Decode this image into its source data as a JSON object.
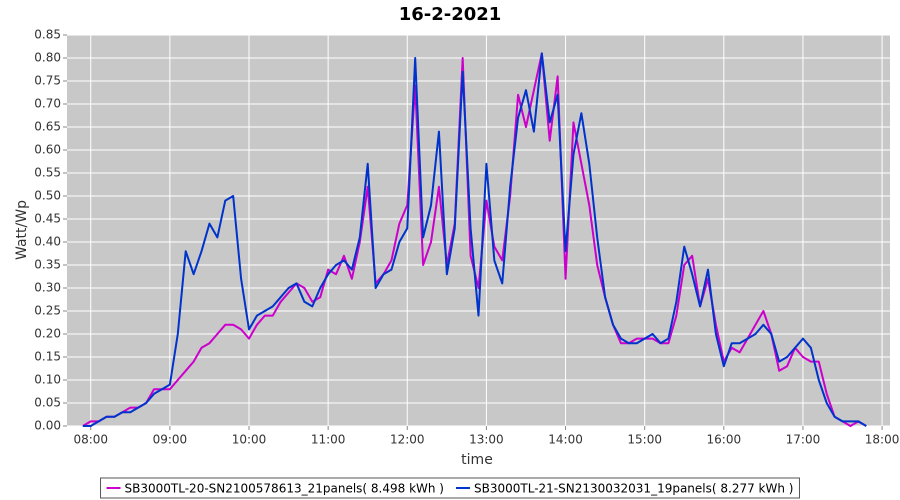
{
  "chart_data": {
    "type": "line",
    "title": "16-2-2021",
    "x_label": "time",
    "y_label": "Watt/Wp",
    "x": [
      7.9,
      8.0,
      8.1,
      8.2,
      8.3,
      8.4,
      8.5,
      8.6,
      8.7,
      8.8,
      8.9,
      9.0,
      9.1,
      9.2,
      9.3,
      9.4,
      9.5,
      9.6,
      9.7,
      9.8,
      9.9,
      10.0,
      10.1,
      10.2,
      10.3,
      10.4,
      10.5,
      10.6,
      10.7,
      10.8,
      10.9,
      11.0,
      11.1,
      11.2,
      11.3,
      11.4,
      11.5,
      11.6,
      11.7,
      11.8,
      11.9,
      12.0,
      12.1,
      12.2,
      12.3,
      12.4,
      12.5,
      12.6,
      12.7,
      12.8,
      12.9,
      13.0,
      13.1,
      13.2,
      13.3,
      13.4,
      13.5,
      13.6,
      13.7,
      13.8,
      13.9,
      14.0,
      14.1,
      14.2,
      14.3,
      14.4,
      14.5,
      14.6,
      14.7,
      14.8,
      14.9,
      15.0,
      15.1,
      15.2,
      15.3,
      15.4,
      15.5,
      15.6,
      15.7,
      15.8,
      15.9,
      16.0,
      16.1,
      16.2,
      16.3,
      16.4,
      16.5,
      16.6,
      16.7,
      16.8,
      16.9,
      17.0,
      17.1,
      17.2,
      17.3,
      17.4,
      17.5,
      17.6,
      17.7,
      17.8
    ],
    "series": [
      {
        "name": "SB3000TL-20-SN2100578613_21panels( 8.498 kWh )",
        "color": "#cc00cc",
        "values": [
          0.0,
          0.01,
          0.01,
          0.02,
          0.02,
          0.03,
          0.04,
          0.04,
          0.05,
          0.08,
          0.08,
          0.08,
          0.1,
          0.12,
          0.14,
          0.17,
          0.18,
          0.2,
          0.22,
          0.22,
          0.21,
          0.19,
          0.22,
          0.24,
          0.24,
          0.27,
          0.29,
          0.31,
          0.3,
          0.27,
          0.28,
          0.34,
          0.33,
          0.37,
          0.32,
          0.4,
          0.52,
          0.31,
          0.33,
          0.36,
          0.44,
          0.48,
          0.74,
          0.35,
          0.4,
          0.52,
          0.35,
          0.44,
          0.8,
          0.37,
          0.3,
          0.49,
          0.39,
          0.36,
          0.5,
          0.72,
          0.65,
          0.73,
          0.81,
          0.62,
          0.76,
          0.32,
          0.66,
          0.57,
          0.48,
          0.35,
          0.28,
          0.22,
          0.18,
          0.18,
          0.19,
          0.19,
          0.19,
          0.18,
          0.18,
          0.24,
          0.35,
          0.37,
          0.26,
          0.32,
          0.22,
          0.14,
          0.17,
          0.16,
          0.19,
          0.22,
          0.25,
          0.2,
          0.12,
          0.13,
          0.17,
          0.15,
          0.14,
          0.14,
          0.07,
          0.02,
          0.01,
          0.0,
          0.01,
          0.0
        ]
      },
      {
        "name": "SB3000TL-21-SN2130032031_19panels( 8.277 kWh )",
        "color": "#0033cc",
        "values": [
          0.0,
          0.0,
          0.01,
          0.02,
          0.02,
          0.03,
          0.03,
          0.04,
          0.05,
          0.07,
          0.08,
          0.09,
          0.2,
          0.38,
          0.33,
          0.38,
          0.44,
          0.41,
          0.49,
          0.5,
          0.32,
          0.21,
          0.24,
          0.25,
          0.26,
          0.28,
          0.3,
          0.31,
          0.27,
          0.26,
          0.3,
          0.33,
          0.35,
          0.36,
          0.34,
          0.41,
          0.57,
          0.3,
          0.33,
          0.34,
          0.4,
          0.43,
          0.8,
          0.41,
          0.48,
          0.64,
          0.33,
          0.43,
          0.77,
          0.43,
          0.24,
          0.57,
          0.36,
          0.31,
          0.52,
          0.67,
          0.73,
          0.64,
          0.81,
          0.66,
          0.72,
          0.38,
          0.59,
          0.68,
          0.57,
          0.41,
          0.28,
          0.22,
          0.19,
          0.18,
          0.18,
          0.19,
          0.2,
          0.18,
          0.19,
          0.27,
          0.39,
          0.33,
          0.26,
          0.34,
          0.2,
          0.13,
          0.18,
          0.18,
          0.19,
          0.2,
          0.22,
          0.2,
          0.14,
          0.15,
          0.17,
          0.19,
          0.17,
          0.1,
          0.05,
          0.02,
          0.01,
          0.01,
          0.01,
          0.0
        ]
      }
    ],
    "xlim": [
      7.7,
      18.1
    ],
    "xticks": [
      {
        "value": 8,
        "label": "08:00"
      },
      {
        "value": 9,
        "label": "09:00"
      },
      {
        "value": 10,
        "label": "10:00"
      },
      {
        "value": 11,
        "label": "11:00"
      },
      {
        "value": 12,
        "label": "12:00"
      },
      {
        "value": 13,
        "label": "13:00"
      },
      {
        "value": 14,
        "label": "14:00"
      },
      {
        "value": 15,
        "label": "15:00"
      },
      {
        "value": 16,
        "label": "16:00"
      },
      {
        "value": 17,
        "label": "17:00"
      },
      {
        "value": 18,
        "label": "18:00"
      }
    ],
    "ylim": [
      0,
      0.85
    ],
    "yticks": [
      {
        "value": 0,
        "label": "0.00"
      },
      0.05,
      {
        "value": 0.1,
        "label": "0.10"
      },
      0.15,
      {
        "value": 0.2,
        "label": "0.20"
      },
      0.25,
      {
        "value": 0.3,
        "label": "0.30"
      },
      0.35,
      {
        "value": 0.4,
        "label": "0.40"
      },
      0.45,
      {
        "value": 0.5,
        "label": "0.50"
      },
      0.55,
      {
        "value": 0.6,
        "label": "0.60"
      },
      0.65,
      {
        "value": 0.7,
        "label": "0.70"
      },
      0.75,
      {
        "value": 0.8,
        "label": "0.80"
      },
      0.85
    ],
    "grid": true,
    "legend": "bottom"
  }
}
